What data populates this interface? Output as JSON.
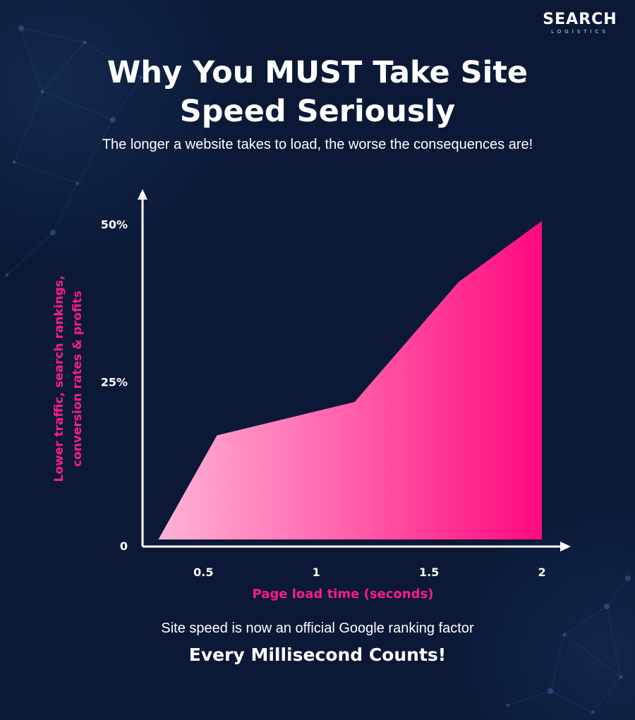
{
  "brand": {
    "name": "SEARCH",
    "tagline": "LOGISTICS"
  },
  "header": {
    "title_line1": "Why You MUST Take Site",
    "title_line2": "Speed Seriously",
    "subtitle": "The longer a website takes to load, the worse the consequences are!"
  },
  "footer": {
    "note": "Site speed is now an official Google ranking factor",
    "tagline": "Every Millisecond Counts!"
  },
  "chart_data": {
    "type": "area",
    "title": "Why You MUST Take Site Speed Seriously",
    "xlabel": "Page load time (seconds)",
    "ylabel_lines": [
      "Lower traffic, search rankings,",
      "conversion rates & profits"
    ],
    "x_ticks": [
      {
        "value": 0.5,
        "label": "0.5"
      },
      {
        "value": 1,
        "label": "1"
      },
      {
        "value": 1.5,
        "label": "1.5"
      },
      {
        "value": 2,
        "label": "2"
      }
    ],
    "y_ticks": [
      {
        "value": 0,
        "label": "0"
      },
      {
        "value": 25,
        "label": "25%"
      },
      {
        "value": 50,
        "label": "50%"
      }
    ],
    "xlim": [
      0.23,
      2.1
    ],
    "ylim": [
      0,
      54
    ],
    "series": [
      {
        "x": [
          0.3,
          0.56,
          1.17,
          1.63,
          2.0
        ],
        "y": [
          0,
          16.5,
          21.8,
          40.8,
          50.5
        ]
      }
    ],
    "fill_gradient": [
      "#ffb3d6",
      "#ff0a7f"
    ],
    "axis_label_color": "#ff1a8c",
    "grid": false,
    "legend": "none"
  }
}
